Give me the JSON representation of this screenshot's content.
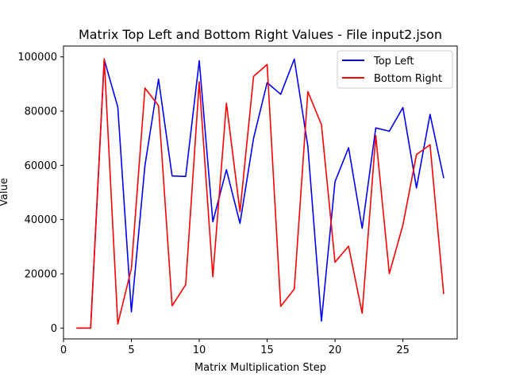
{
  "chart_data": {
    "type": "line",
    "title": "Matrix Top Left and Bottom Right Values - File input2.json",
    "xlabel": "Matrix Multiplication Step",
    "ylabel": "Value",
    "xlim": [
      0,
      29
    ],
    "ylim": [
      -4000,
      104000
    ],
    "xticks": [
      0,
      5,
      10,
      15,
      20,
      25
    ],
    "yticks": [
      0,
      20000,
      40000,
      60000,
      80000,
      100000
    ],
    "grid": false,
    "legend_position": "top-right",
    "x": [
      1,
      2,
      3,
      4,
      5,
      6,
      7,
      8,
      9,
      10,
      11,
      12,
      13,
      14,
      15,
      16,
      17,
      18,
      19,
      20,
      21,
      22,
      23,
      24,
      25,
      26,
      27,
      28
    ],
    "series": [
      {
        "name": "Top Left",
        "color": "#0000ff",
        "values": [
          0,
          0,
          99000,
          81500,
          6000,
          60000,
          91800,
          56100,
          55900,
          98600,
          39200,
          58400,
          38600,
          70000,
          90500,
          86200,
          99200,
          67000,
          2600,
          54000,
          66500,
          36800,
          73800,
          72600,
          81300,
          51700,
          78800,
          55500
        ]
      },
      {
        "name": "Bottom Right",
        "color": "#ff0000",
        "values": [
          0,
          0,
          99300,
          1500,
          22000,
          88500,
          82000,
          8200,
          16000,
          90800,
          18900,
          82900,
          42900,
          92800,
          97200,
          8000,
          14400,
          87200,
          75000,
          24300,
          30200,
          5500,
          71000,
          20100,
          38000,
          64000,
          67600,
          12800
        ]
      }
    ]
  }
}
